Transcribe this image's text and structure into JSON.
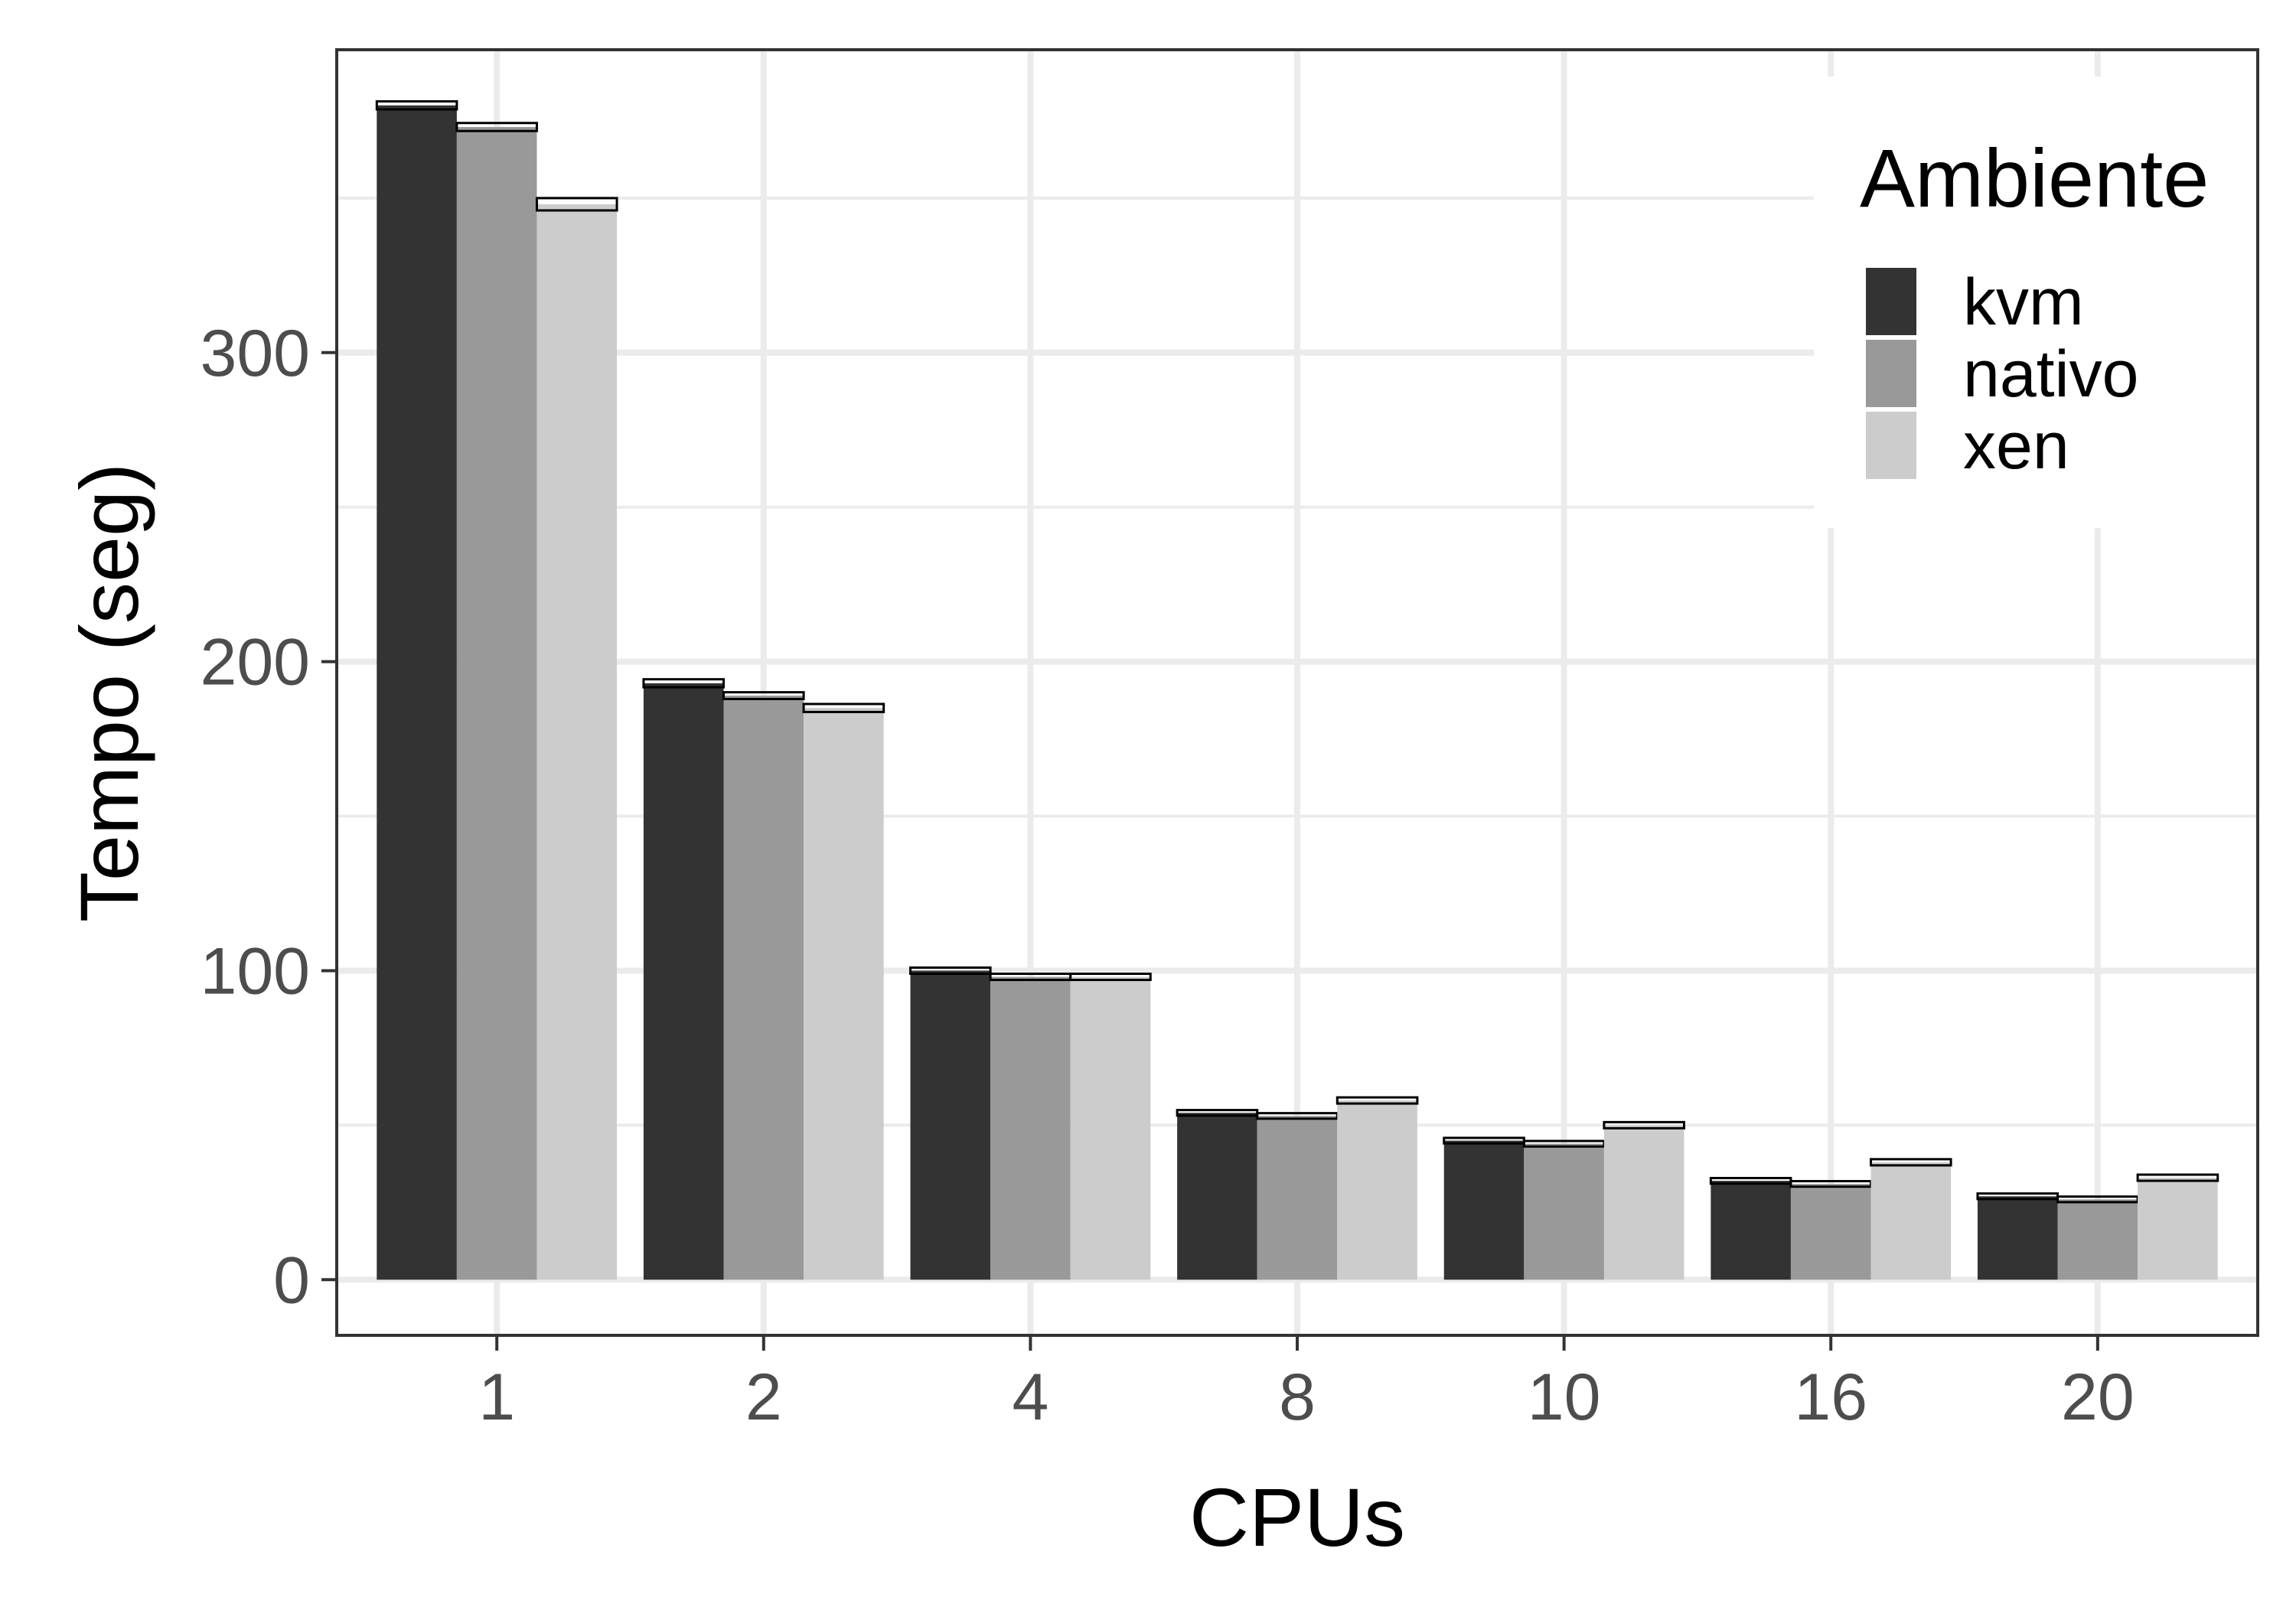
{
  "chart_data": {
    "type": "bar",
    "title": "",
    "xlabel": "CPUs",
    "ylabel": "Tempo (seg)",
    "categories": [
      "1",
      "2",
      "4",
      "8",
      "10",
      "16",
      "20"
    ],
    "series": [
      {
        "name": "kvm",
        "values": [
          380,
          193,
          100,
          54,
          45,
          32,
          27
        ],
        "error": [
          0.8,
          0.8,
          0.5,
          0.4,
          0.4,
          0.4,
          0.4
        ],
        "color": "#333333"
      },
      {
        "name": "nativo",
        "values": [
          373,
          189,
          98,
          53,
          44,
          31,
          26
        ],
        "error": [
          0.8,
          0.6,
          0.5,
          0.4,
          0.4,
          0.4,
          0.4
        ],
        "color": "#999999"
      },
      {
        "name": "xen",
        "values": [
          348,
          185,
          98,
          58,
          50,
          38,
          33
        ],
        "error": [
          1.5,
          0.8,
          0.5,
          0.5,
          0.5,
          0.5,
          0.5
        ],
        "color": "#cccccc"
      }
    ],
    "ylim": [
      -18,
      398
    ],
    "y_ticks": [
      0,
      100,
      200,
      300
    ],
    "y_minor_ticks": [
      50,
      150,
      250,
      350
    ],
    "grid": true,
    "legend": {
      "title": "Ambiente",
      "position": "top-right"
    }
  }
}
